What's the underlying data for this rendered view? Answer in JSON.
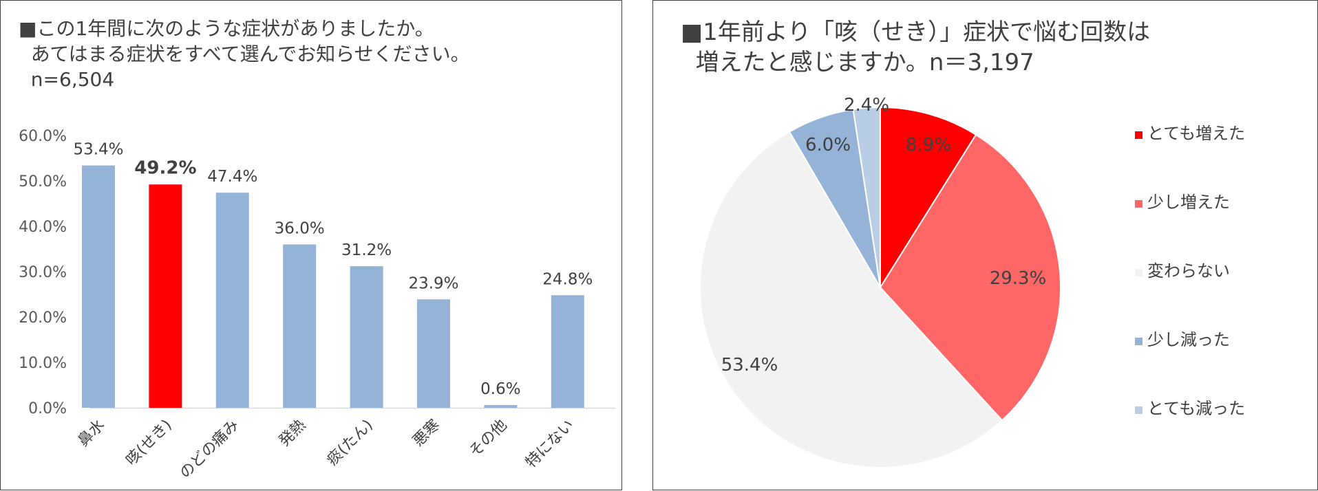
{
  "colors": {
    "bar_default": "#95b3d7",
    "bar_highlight": "#ff0000",
    "text": "#404040",
    "axis": "#d9d9d9"
  },
  "left_panel": {
    "title_lines": [
      "■この1年間に次のような症状がありましたか。",
      "  あてはまる症状をすべて選んでお知らせください。",
      "  n=6,504"
    ]
  },
  "right_panel": {
    "title_lines": [
      "■1年前より「咳（せき）」症状で悩む回数は",
      "  増えたと感じますか。n＝3,197"
    ]
  },
  "chart_data": [
    {
      "type": "bar",
      "categories": [
        "鼻水",
        "咳(せき)",
        "のどの痛み",
        "発熱",
        "痰(たん)",
        "悪寒",
        "その他",
        "特にない"
      ],
      "values": [
        53.4,
        49.2,
        47.4,
        36.0,
        31.2,
        23.9,
        0.6,
        24.8
      ],
      "value_labels": [
        "53.4%",
        "49.2%",
        "47.4%",
        "36.0%",
        "31.2%",
        "23.9%",
        "0.6%",
        "24.8%"
      ],
      "highlight_index": 1,
      "ylim": [
        0,
        60
      ],
      "yticks": [
        "0.0%",
        "10.0%",
        "20.0%",
        "30.0%",
        "40.0%",
        "50.0%",
        "60.0%"
      ],
      "grid": false
    },
    {
      "type": "pie",
      "categories": [
        "とても増えた",
        "少し増えた",
        "変わらない",
        "少し減った",
        "とても減った"
      ],
      "values": [
        8.9,
        29.3,
        53.4,
        6.0,
        2.4
      ],
      "value_labels": [
        "8.9%",
        "29.3%",
        "53.4%",
        "6.0%",
        "2.4%"
      ],
      "colors": [
        "#ff0000",
        "#ff6666",
        "#f2f2f2",
        "#95b3d7",
        "#b9cde5"
      ],
      "legend_position": "right"
    }
  ]
}
